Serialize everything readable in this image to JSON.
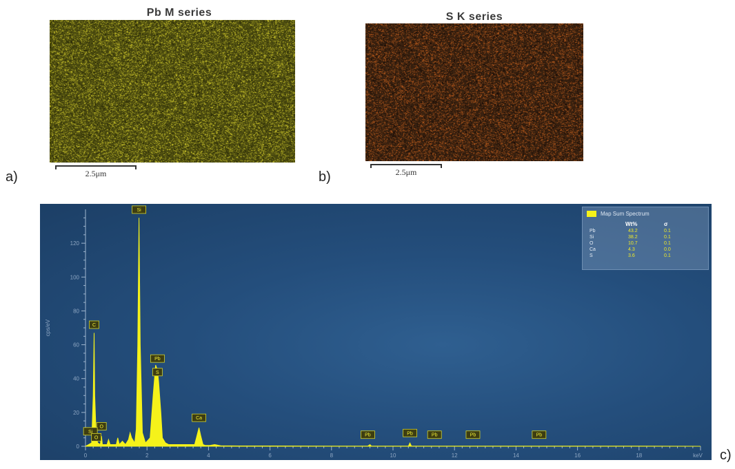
{
  "panels": {
    "a": {
      "label": "a)",
      "title": "Pb M series",
      "scale_bar": "2.5μm",
      "colors": {
        "base": "#4e4e10",
        "dot_bright": "#c9c22a",
        "dot_dark": "#232306"
      }
    },
    "b": {
      "label": "b)",
      "title": "S K series",
      "scale_bar": "2.5μm",
      "colors": {
        "base": "#3a2210",
        "dot_bright": "#b85a1c",
        "dot_dark": "#160a05"
      }
    },
    "c": {
      "label": "c)"
    }
  },
  "chart_data": {
    "type": "line",
    "title": "",
    "xlabel": "keV",
    "ylabel": "cps/eV",
    "xlim": [
      0,
      20
    ],
    "ylim": [
      0,
      140
    ],
    "x_ticks": [
      0,
      2,
      4,
      6,
      8,
      10,
      12,
      14,
      16,
      18
    ],
    "y_ticks": [
      0,
      20,
      40,
      60,
      80,
      100,
      120
    ],
    "colors": {
      "spectrum": "#f5f21a",
      "axis": "#9fb6cf",
      "tick_text": "#8ea6c2"
    },
    "series": [
      {
        "name": "Map Sum Spectrum",
        "x": [
          0,
          0.2,
          0.25,
          0.28,
          0.3,
          0.35,
          0.4,
          0.48,
          0.52,
          0.55,
          0.6,
          0.7,
          0.75,
          0.8,
          1.0,
          1.05,
          1.1,
          1.2,
          1.3,
          1.4,
          1.45,
          1.5,
          1.6,
          1.65,
          1.7,
          1.74,
          1.78,
          1.85,
          1.95,
          2.1,
          2.2,
          2.28,
          2.34,
          2.38,
          2.45,
          2.5,
          2.6,
          2.7,
          2.8,
          3.0,
          3.2,
          3.4,
          3.55,
          3.62,
          3.69,
          3.75,
          3.82,
          3.9,
          4.05,
          4.2,
          4.4,
          5,
          6,
          8,
          9.18,
          9.25,
          9.3,
          10,
          10.5,
          10.55,
          10.6,
          10.7,
          12,
          14,
          16,
          18,
          20
        ],
        "y": [
          0,
          2,
          30,
          67,
          30,
          5,
          2,
          1,
          6,
          1,
          1,
          1,
          4,
          1,
          1,
          5,
          1,
          3,
          1,
          4,
          8,
          5,
          2,
          10,
          60,
          135,
          60,
          8,
          2,
          5,
          30,
          48,
          45,
          38,
          20,
          5,
          2,
          1,
          1,
          1,
          1,
          1,
          1,
          6,
          11,
          6,
          1,
          0.5,
          0.5,
          1,
          0.3,
          0.2,
          0.2,
          0.1,
          0.1,
          1,
          0.1,
          0.1,
          0.1,
          2,
          0.1,
          0.1,
          0.1,
          0.1,
          0.1,
          0.1,
          0
        ]
      }
    ],
    "peak_labels": [
      {
        "text": "Si",
        "x": 1.74,
        "y": 138
      },
      {
        "text": "C",
        "x": 0.28,
        "y": 70
      },
      {
        "text": "Pb",
        "x": 2.34,
        "y": 50
      },
      {
        "text": "S",
        "x": 2.34,
        "y": 42
      },
      {
        "text": "Ca",
        "x": 3.69,
        "y": 15
      },
      {
        "text": "O",
        "x": 0.52,
        "y": 10
      },
      {
        "text": "Si",
        "x": 0.16,
        "y": 7
      },
      {
        "text": "O",
        "x": 0.35,
        "y": 3.5
      },
      {
        "text": "Pb",
        "x": 9.18,
        "y": 5
      },
      {
        "text": "Pb",
        "x": 10.55,
        "y": 6
      },
      {
        "text": "Pb",
        "x": 11.35,
        "y": 5
      },
      {
        "text": "Pb",
        "x": 12.6,
        "y": 5
      },
      {
        "text": "Pb",
        "x": 14.75,
        "y": 5
      }
    ],
    "legend": {
      "placement": "top-right",
      "name": "Map Sum Spectrum",
      "headers": [
        "Wt%",
        "σ"
      ],
      "rows": [
        {
          "el": "Pb",
          "wt": "43.2",
          "sigma": "0.1"
        },
        {
          "el": "Si",
          "wt": "38.2",
          "sigma": "0.1"
        },
        {
          "el": "O",
          "wt": "10.7",
          "sigma": "0.1"
        },
        {
          "el": "Ca",
          "wt": "4.3",
          "sigma": "0.0"
        },
        {
          "el": "S",
          "wt": "3.6",
          "sigma": "0.1"
        }
      ]
    }
  }
}
